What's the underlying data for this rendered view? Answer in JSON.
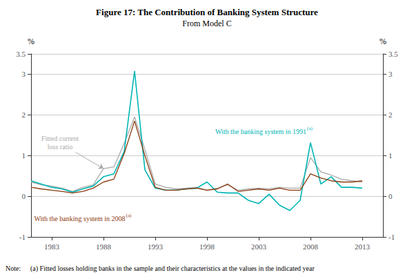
{
  "chart_data": {
    "type": "line",
    "title": "Figure 17: The Contribution of Banking System Structure",
    "subtitle": "From Model C",
    "notes": [
      "Note:",
      "(a) Fitted losses holding banks in the sample and their characteristics at the values in the indicated year"
    ],
    "ylabel": "%",
    "y2label": "%",
    "x": [
      1981,
      1982,
      1983,
      1984,
      1985,
      1986,
      1987,
      1988,
      1989,
      1990,
      1991,
      1992,
      1993,
      1994,
      1995,
      1996,
      1997,
      1998,
      1999,
      2000,
      2001,
      2002,
      2003,
      2004,
      2005,
      2006,
      2007,
      2008,
      2009,
      2010,
      2011,
      2012,
      2013
    ],
    "xlim": [
      1981.0,
      2015.0
    ],
    "xticks": [
      1983,
      1988,
      1993,
      1998,
      2003,
      2008,
      2013
    ],
    "ylim": [
      -1.0,
      3.5
    ],
    "yticks": [
      -1,
      0,
      1,
      2,
      3
    ],
    "y2lim": [
      -1.0,
      3.5
    ],
    "y2ticks": [
      -1,
      0,
      1,
      2,
      3
    ],
    "grid": true,
    "series": [
      {
        "color": "#aaaaaa",
        "values": [
          0.35,
          0.28,
          0.25,
          0.2,
          0.12,
          0.22,
          0.28,
          0.68,
          0.72,
          1.3,
          1.95,
          1.15,
          0.3,
          0.22,
          0.18,
          0.2,
          0.22,
          0.15,
          0.2,
          0.28,
          0.15,
          0.18,
          0.2,
          0.18,
          0.22,
          0.2,
          0.2,
          0.95,
          0.6,
          0.52,
          0.42,
          0.38,
          0.35
        ]
      },
      {
        "color": "#00b5b5",
        "values": [
          0.38,
          0.3,
          0.22,
          0.18,
          0.1,
          0.18,
          0.25,
          0.48,
          0.55,
          1.1,
          3.08,
          0.65,
          0.2,
          0.15,
          0.15,
          0.18,
          0.2,
          0.35,
          0.1,
          0.08,
          0.08,
          -0.1,
          -0.18,
          0.05,
          -0.22,
          -0.35,
          -0.1,
          1.32,
          0.3,
          0.48,
          0.22,
          0.22,
          0.2
        ]
      },
      {
        "color": "#8B3A0F",
        "values": [
          0.22,
          0.18,
          0.15,
          0.12,
          0.08,
          0.12,
          0.2,
          0.35,
          0.42,
          1.05,
          1.85,
          1.0,
          0.22,
          0.15,
          0.15,
          0.18,
          0.2,
          0.15,
          0.18,
          0.3,
          0.12,
          0.15,
          0.18,
          0.15,
          0.2,
          0.15,
          0.15,
          0.55,
          0.45,
          0.38,
          0.35,
          0.35,
          0.38
        ]
      }
    ],
    "annotations": [
      {
        "text": "Fitted current\nloss ratio",
        "color": "#aaaaaa"
      },
      {
        "text": "With the banking system in 1991",
        "superscript": "(a)",
        "color": "#00b5b5"
      },
      {
        "text": "With the banking system in 2008",
        "superscript": "(a)",
        "color": "#8B3A0F"
      }
    ]
  }
}
